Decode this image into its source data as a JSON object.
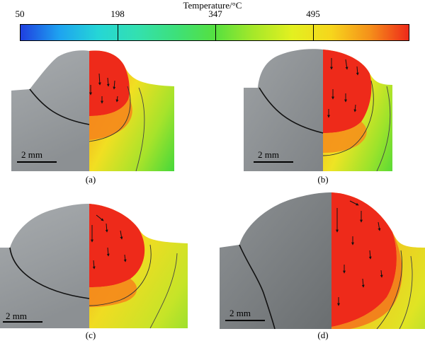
{
  "colorbar": {
    "title": "Temperature/°C",
    "ticks": [
      "50",
      "198",
      "347",
      "495"
    ],
    "colors": [
      "#1f3fe0",
      "#25d6d6",
      "#55e040",
      "#e3f020",
      "#f5901a",
      "#ee2a1a"
    ]
  },
  "panels": [
    {
      "label": "(a)",
      "scale_bar": "2 mm"
    },
    {
      "label": "(b)",
      "scale_bar": "2 mm"
    },
    {
      "label": "(c)",
      "scale_bar": "2 mm"
    },
    {
      "label": "(d)",
      "scale_bar": "2 mm"
    }
  ]
}
